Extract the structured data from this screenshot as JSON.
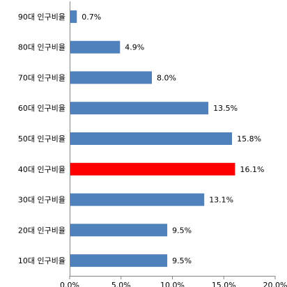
{
  "chart_data": {
    "type": "bar",
    "orientation": "horizontal",
    "categories": [
      "90대 인구비율",
      "80대 인구비율",
      "70대 인구비율",
      "60대 인구비율",
      "50대 인구비율",
      "40대 인구비율",
      "30대 인구비율",
      "20대 인구비율",
      "10대 인구비율"
    ],
    "values": [
      0.7,
      4.9,
      8.0,
      13.5,
      15.8,
      16.1,
      13.1,
      9.5,
      9.5
    ],
    "data_labels": [
      "0.7%",
      "4.9%",
      "8.0%",
      "13.5%",
      "15.8%",
      "16.1%",
      "13.1%",
      "9.5%",
      "9.5%"
    ],
    "highlight_index": 5,
    "xlim": [
      0,
      20
    ],
    "xticks": [
      "0.0%",
      "5.0%",
      "10.0%",
      "15.0%",
      "20.0%"
    ],
    "grid": false,
    "legend": "none",
    "title": "",
    "xlabel": "",
    "ylabel": "",
    "colors": {
      "bar": "#4f81bd",
      "highlight": "#ff0000",
      "axis": "#868686"
    }
  }
}
